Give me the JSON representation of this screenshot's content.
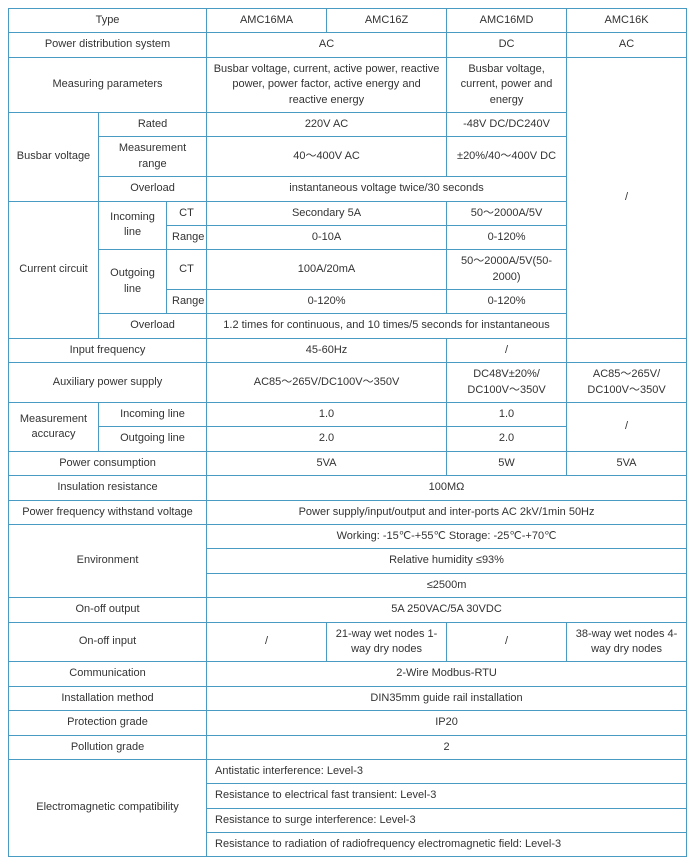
{
  "headers": {
    "type": "Type",
    "c1": "AMC16MA",
    "c2": "AMC16Z",
    "c3": "AMC16MD",
    "c4": "AMC16K"
  },
  "rows": {
    "pds_label": "Power distribution system",
    "pds_ac": "AC",
    "pds_dc": "DC",
    "pds_ac2": "AC",
    "mp_label": "Measuring parameters",
    "mp_v1": "Busbar voltage, current, active power, reactive power, power factor, active energy and reactive energy",
    "mp_v2": "Busbar voltage, current, power and energy",
    "bv_label": "Busbar voltage",
    "bv_rated": "Rated",
    "bv_rated_v1": "220V AC",
    "bv_rated_v2": "-48V DC/DC240V",
    "bv_mr": "Measurement range",
    "bv_mr_v1": "40～400V AC",
    "bv_mr_v2": "±20%/40～400V DC",
    "bv_ol": "Overload",
    "bv_ol_v": "instantaneous voltage twice/30 seconds",
    "cc_label": "Current circuit",
    "cc_in": "Incoming line",
    "cc_out": "Outgoing line",
    "cc_ct": "CT",
    "cc_range": "Range",
    "cc_in_ct_v1": "Secondary 5A",
    "cc_in_ct_v2": "50～2000A/5V",
    "cc_in_rg_v1": "0-10A",
    "cc_in_rg_v2": "0-120%",
    "cc_out_ct_v1": "100A/20mA",
    "cc_out_ct_v2": "50～2000A/5V(50-2000)",
    "cc_out_rg_v1": "0-120%",
    "cc_out_rg_v2": "0-120%",
    "cc_ol": "Overload",
    "cc_ol_v": "1.2 times for continuous, and 10 times/5 seconds for instantaneous",
    "if_label": "Input frequency",
    "if_v1": "45-60Hz",
    "if_v2": "/",
    "aps_label": "Auxiliary power supply",
    "aps_v1": "AC85～265V/DC100V～350V",
    "aps_v2": "DC48V±20%/ DC100V～350V",
    "aps_v3": "AC85～265V/ DC100V～350V",
    "ma_label": "Measurement accuracy",
    "ma_in": "Incoming line",
    "ma_out": "Outgoing line",
    "ma_in_v1": "1.0",
    "ma_in_v2": "1.0",
    "ma_out_v1": "2.0",
    "ma_out_v2": "2.0",
    "ma_slash": "/",
    "pc_label": "Power consumption",
    "pc_v1": "5VA",
    "pc_v2": "5W",
    "pc_v3": "5VA",
    "ir_label": "Insulation resistance",
    "ir_v": "100MΩ",
    "pfw_label": "Power frequency withstand voltage",
    "pfw_v": "Power supply/input/output and inter-ports AC 2kV/1min 50Hz",
    "env_label": "Environment",
    "env_v1": "Working: -15℃-+55℃ Storage: -25℃-+70℃",
    "env_v2": "Relative humidity ≤93%",
    "env_v3": "≤2500m",
    "ooo_label": "On-off output",
    "ooo_v": "5A 250VAC/5A 30VDC",
    "ooi_label": "On-off input",
    "ooi_v1": "/",
    "ooi_v2": "21-way wet nodes 1-way dry nodes",
    "ooi_v3": "/",
    "ooi_v4": "38-way wet nodes 4-way dry nodes",
    "com_label": "Communication",
    "com_v": "2-Wire Modbus-RTU",
    "inst_label": "Installation method",
    "inst_v": "DIN35mm guide rail installation",
    "pg_label": "Protection grade",
    "pg_v": "IP20",
    "pol_label": "Pollution grade",
    "pol_v": "2",
    "emc_label": "Electromagnetic compatibility",
    "emc_v1": "Antistatic interference: Level-3",
    "emc_v2": "Resistance to electrical fast transient: Level-3",
    "emc_v3": "Resistance to surge interference: Level-3",
    "emc_v4": "Resistance to radiation of radiofrequency electromagnetic field: Level-3",
    "slash": "/"
  }
}
